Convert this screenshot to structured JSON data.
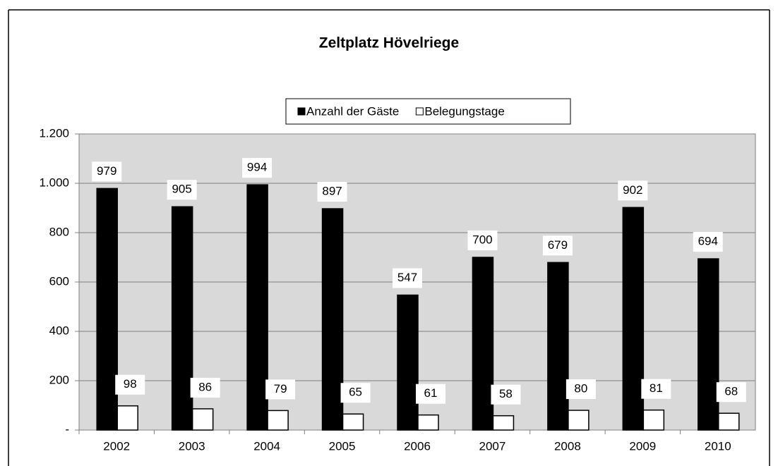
{
  "chart_data": {
    "type": "bar",
    "title": "Zeltplatz Hövelriege",
    "categories": [
      "2002",
      "2003",
      "2004",
      "2005",
      "2006",
      "2007",
      "2008",
      "2009",
      "2010"
    ],
    "series": [
      {
        "name": "Anzahl der Gäste",
        "color": "#000000",
        "values": [
          979,
          905,
          994,
          897,
          547,
          700,
          679,
          902,
          694
        ]
      },
      {
        "name": "Belegungstage",
        "color": "#ffffff",
        "values": [
          98,
          86,
          79,
          65,
          61,
          58,
          80,
          81,
          68
        ]
      }
    ],
    "ylim": [
      0,
      1200
    ],
    "yticks": [
      {
        "value": 0,
        "label": "-"
      },
      200,
      400,
      600,
      800,
      {
        "value": 1000,
        "label": "1.000"
      },
      {
        "value": 1200,
        "label": "1.200"
      }
    ],
    "grid": true,
    "legend": "top"
  }
}
